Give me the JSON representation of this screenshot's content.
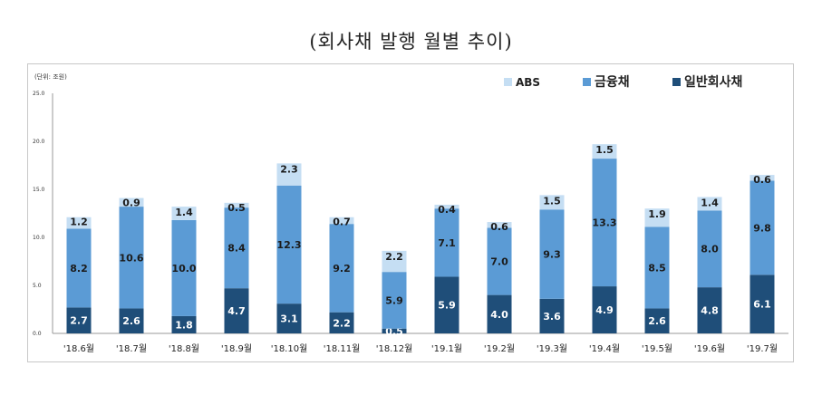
{
  "title": "(회사채 발행 월별 추이)",
  "chart_data": {
    "type": "bar",
    "stacked": true,
    "unit_label": "(단위: 조원)",
    "ylim": [
      0,
      25
    ],
    "yticks": [
      "0.0",
      "5.0",
      "10.0",
      "15.0",
      "20.0",
      "25.0"
    ],
    "grid": false,
    "legend_position": "top-right",
    "categories": [
      "'18.6월",
      "'18.7월",
      "'18.8월",
      "'18.9월",
      "'18.10월",
      "'18.11월",
      "'18.12월",
      "'19.1월",
      "'19.2월",
      "'19.3월",
      "'19.4월",
      "'19.5월",
      "'19.6월",
      "'19.7월"
    ],
    "series": [
      {
        "name": "일반회사채",
        "color": "#1f4e79",
        "values": [
          2.7,
          2.6,
          1.8,
          4.7,
          3.1,
          2.2,
          0.5,
          5.9,
          4.0,
          3.6,
          4.9,
          2.6,
          4.8,
          6.1
        ]
      },
      {
        "name": "금융채",
        "color": "#5b9bd5",
        "values": [
          8.2,
          10.6,
          10.0,
          8.4,
          12.3,
          9.2,
          5.9,
          7.1,
          7.0,
          9.3,
          13.3,
          8.5,
          8.0,
          9.8
        ]
      },
      {
        "name": "ABS",
        "color": "#c5def3",
        "values": [
          1.2,
          0.9,
          1.4,
          0.5,
          2.3,
          0.7,
          2.2,
          0.4,
          0.6,
          1.5,
          1.5,
          1.9,
          1.4,
          0.6
        ]
      }
    ],
    "legend_order": [
      "ABS",
      "금융채",
      "일반회사채"
    ]
  }
}
